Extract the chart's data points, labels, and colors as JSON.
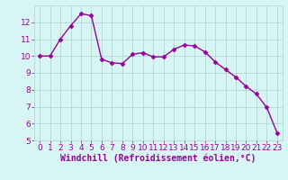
{
  "x": [
    0,
    1,
    2,
    3,
    4,
    5,
    6,
    7,
    8,
    9,
    10,
    11,
    12,
    13,
    14,
    15,
    16,
    17,
    18,
    19,
    20,
    21,
    22,
    23
  ],
  "y": [
    10.0,
    10.0,
    11.0,
    11.8,
    12.5,
    12.4,
    9.8,
    9.6,
    9.55,
    10.1,
    10.2,
    9.95,
    9.95,
    10.4,
    10.65,
    10.6,
    10.25,
    9.65,
    9.2,
    8.75,
    8.2,
    7.75,
    6.95,
    5.45
  ],
  "line_color": "#990099",
  "marker": "D",
  "markersize": 2.5,
  "linewidth": 1.0,
  "bg_color": "#d8f5f5",
  "grid_color": "#b0d8d8",
  "xlabel": "Windchill (Refroidissement éolien,°C)",
  "ylim": [
    5,
    13
  ],
  "xlim": [
    -0.5,
    23.5
  ],
  "yticks": [
    5,
    6,
    7,
    8,
    9,
    10,
    11,
    12
  ],
  "xticks": [
    0,
    1,
    2,
    3,
    4,
    5,
    6,
    7,
    8,
    9,
    10,
    11,
    12,
    13,
    14,
    15,
    16,
    17,
    18,
    19,
    20,
    21,
    22,
    23
  ],
  "tick_color": "#990099",
  "xlabel_color": "#990099",
  "xlabel_fontsize": 7.0,
  "tick_fontsize": 6.5
}
